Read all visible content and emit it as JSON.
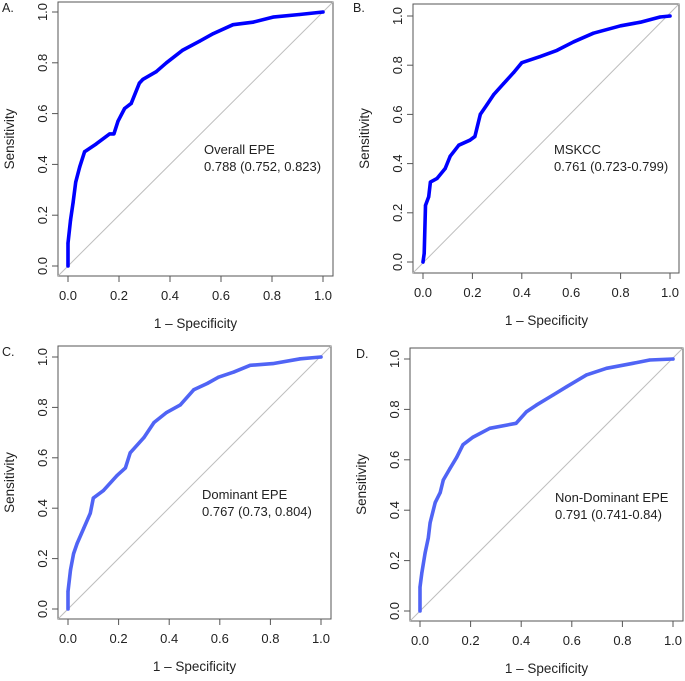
{
  "figure": {
    "panel_count": 4,
    "colors": {
      "top_panels_curve": "#0000FF",
      "bottom_panels_curve": "#5064F5",
      "reference_line": "#BEBEBE",
      "axis": "#555555"
    }
  },
  "chart_data": [
    {
      "type": "line",
      "panel_label": "A.",
      "title": "",
      "xlabel": "1 – Specificity",
      "ylabel": "Sensitivity",
      "xlim": [
        0,
        1
      ],
      "ylim": [
        0,
        1
      ],
      "xticks": [
        "0.0",
        "0.2",
        "0.4",
        "0.6",
        "0.8",
        "1.0"
      ],
      "yticks": [
        "0.0",
        "0.2",
        "0.4",
        "0.6",
        "0.8",
        "1.0"
      ],
      "grid": false,
      "reference_line": "diagonal",
      "annotation": [
        "Overall EPE",
        "0.788 (0.752, 0.823)"
      ],
      "series": [
        {
          "name": "Overall EPE",
          "auc": 0.788,
          "ci": [
            0.752,
            0.823
          ],
          "x": [
            0,
            0,
            0.01,
            0.02,
            0.03,
            0.046,
            0.065,
            0.11,
            0.163,
            0.18,
            0.196,
            0.222,
            0.248,
            0.28,
            0.294,
            0.346,
            0.386,
            0.45,
            0.516,
            0.57,
            0.647,
            0.725,
            0.804,
            0.908,
            1
          ],
          "y": [
            0,
            0.09,
            0.18,
            0.25,
            0.33,
            0.39,
            0.45,
            0.48,
            0.52,
            0.52,
            0.57,
            0.62,
            0.64,
            0.72,
            0.735,
            0.765,
            0.8,
            0.85,
            0.885,
            0.915,
            0.95,
            0.96,
            0.98,
            0.99,
            1
          ]
        }
      ]
    },
    {
      "type": "line",
      "panel_label": "B.",
      "title": "",
      "xlabel": "1 – Specificity",
      "ylabel": "Sensitivity",
      "xlim": [
        0,
        1
      ],
      "ylim": [
        0,
        1
      ],
      "xticks": [
        "0.0",
        "0.2",
        "0.4",
        "0.6",
        "0.8",
        "1.0"
      ],
      "yticks": [
        "0.0",
        "0.2",
        "0.4",
        "0.6",
        "0.8",
        "1.0"
      ],
      "grid": false,
      "reference_line": "diagonal",
      "annotation": [
        "MSKCC",
        "0.761 (0.723-0.799)"
      ],
      "series": [
        {
          "name": "MSKCC",
          "auc": 0.761,
          "ci": [
            0.723,
            0.799
          ],
          "x": [
            0,
            0.005,
            0.01,
            0.023,
            0.03,
            0.057,
            0.09,
            0.11,
            0.145,
            0.19,
            0.21,
            0.232,
            0.259,
            0.286,
            0.326,
            0.367,
            0.4,
            0.474,
            0.542,
            0.61,
            0.69,
            0.8,
            0.88,
            0.96,
            1
          ],
          "y": [
            0,
            0.035,
            0.23,
            0.265,
            0.325,
            0.34,
            0.38,
            0.43,
            0.475,
            0.495,
            0.51,
            0.6,
            0.64,
            0.68,
            0.725,
            0.77,
            0.81,
            0.835,
            0.86,
            0.895,
            0.93,
            0.96,
            0.975,
            0.996,
            1
          ]
        }
      ]
    },
    {
      "type": "line",
      "panel_label": "C.",
      "title": "",
      "xlabel": "1 – Specificity",
      "ylabel": "Sensitivity",
      "xlim": [
        0,
        1
      ],
      "ylim": [
        0,
        1
      ],
      "xticks": [
        "0.0",
        "0.2",
        "0.4",
        "0.6",
        "0.8",
        "1.0"
      ],
      "yticks": [
        "0.0",
        "0.2",
        "0.4",
        "0.6",
        "0.8",
        "1.0"
      ],
      "grid": false,
      "reference_line": "diagonal",
      "annotation": [
        "Dominant EPE",
        "0.767 (0.73, 0.804)"
      ],
      "series": [
        {
          "name": "Dominant EPE",
          "auc": 0.767,
          "ci": [
            0.73,
            0.804
          ],
          "x": [
            0,
            0,
            0.01,
            0.022,
            0.036,
            0.062,
            0.088,
            0.1,
            0.14,
            0.194,
            0.227,
            0.246,
            0.3,
            0.34,
            0.39,
            0.444,
            0.497,
            0.55,
            0.595,
            0.655,
            0.72,
            0.81,
            0.918,
            1
          ],
          "y": [
            0,
            0.07,
            0.155,
            0.22,
            0.26,
            0.32,
            0.38,
            0.44,
            0.47,
            0.53,
            0.56,
            0.62,
            0.68,
            0.74,
            0.78,
            0.81,
            0.87,
            0.895,
            0.92,
            0.94,
            0.967,
            0.974,
            0.993,
            1
          ]
        }
      ]
    },
    {
      "type": "line",
      "panel_label": "D.",
      "title": "",
      "xlabel": "1 – Specificity",
      "ylabel": "Sensitivity",
      "xlim": [
        0,
        1
      ],
      "ylim": [
        0,
        1
      ],
      "xticks": [
        "0.0",
        "0.2",
        "0.4",
        "0.6",
        "0.8",
        "1.0"
      ],
      "yticks": [
        "0.0",
        "0.2",
        "0.4",
        "0.6",
        "0.8",
        "1.0"
      ],
      "grid": false,
      "reference_line": "diagonal",
      "annotation": [
        "Non-Dominant EPE",
        "0.791 (0.741-0.84)"
      ],
      "series": [
        {
          "name": "Non-Dominant EPE",
          "auc": 0.791,
          "ci": [
            0.741,
            0.84
          ],
          "x": [
            0,
            0,
            0.007,
            0.02,
            0.033,
            0.04,
            0.06,
            0.08,
            0.092,
            0.118,
            0.145,
            0.17,
            0.21,
            0.276,
            0.38,
            0.42,
            0.46,
            0.526,
            0.58,
            0.658,
            0.737,
            0.842,
            0.908,
            1
          ],
          "y": [
            0,
            0.095,
            0.15,
            0.23,
            0.29,
            0.35,
            0.43,
            0.47,
            0.52,
            0.565,
            0.61,
            0.66,
            0.69,
            0.725,
            0.745,
            0.79,
            0.817,
            0.857,
            0.89,
            0.937,
            0.963,
            0.983,
            0.996,
            1
          ]
        }
      ]
    }
  ]
}
